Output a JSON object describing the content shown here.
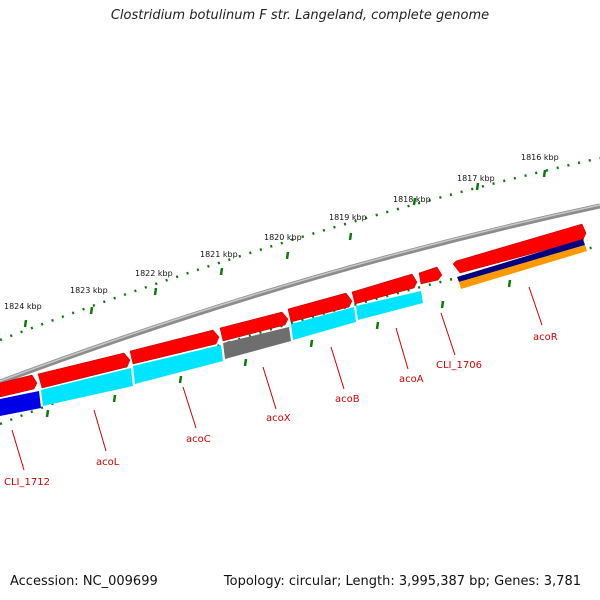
{
  "title": "Clostridium botulinum F str. Langeland, complete genome",
  "footer": {
    "accession": "Accession: NC_009699",
    "summary": "Topology: circular; Length: 3,995,387 bp; Genes: 3,781"
  },
  "scale_labels": [
    "1816 kbp",
    "1817 kbp",
    "1818 kbp",
    "1819 kbp",
    "1820 kbp",
    "1821 kbp",
    "1822 kbp",
    "1823 kbp",
    "1824 kbp"
  ],
  "gene_labels": [
    "acoR",
    "CLI_1706",
    "acoA",
    "acoB",
    "acoX",
    "acoC",
    "acoL",
    "CLI_1712"
  ],
  "colors": {
    "cds_forward": "#ff0000",
    "cds_reverse_cyan": "#00e5ff",
    "gray_gene": "#6e6e6e",
    "blue_gene": "#0000e8",
    "navy_gene": "#000080",
    "orange_gene": "#ff9900",
    "backbone": "#8c8c8c",
    "ticks": "#0a7a0a",
    "label": "#d00000"
  }
}
